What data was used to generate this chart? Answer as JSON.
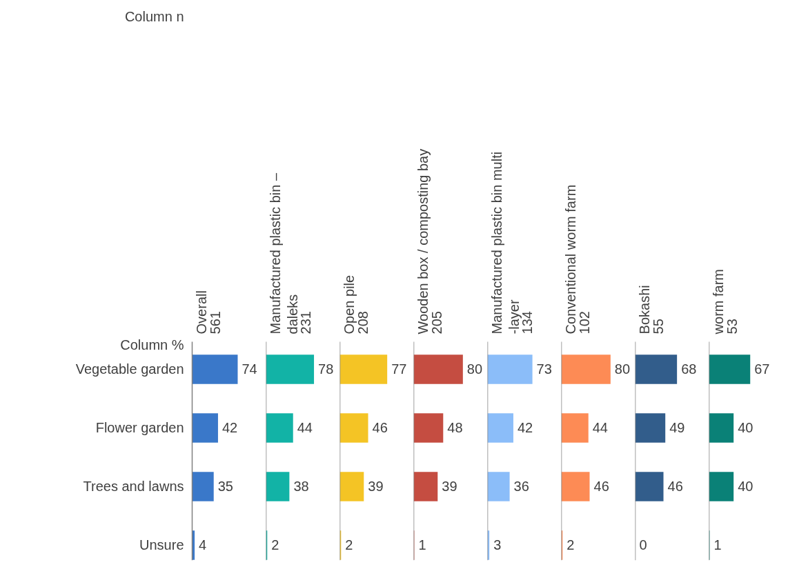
{
  "chart_data": [
    {
      "type": "bar",
      "orientation": "horizontal",
      "title": "Overall",
      "subtitle": "561",
      "categories": [
        "Vegetable garden",
        "Flower garden",
        "Trees and lawns",
        "Unsure"
      ],
      "values": [
        74,
        42,
        35,
        4
      ],
      "color": "#3a78c9",
      "data_labels": true,
      "tick_labels": "y",
      "annotations": [
        "Column n",
        "Column %"
      ]
    },
    {
      "type": "bar",
      "orientation": "horizontal",
      "title": "Manufactured plastic bin –\ndaleks",
      "subtitle": "231",
      "values": [
        78,
        44,
        38,
        2
      ],
      "color": "#12b3a6",
      "data_labels": true,
      "tick_labels": false
    },
    {
      "type": "bar",
      "orientation": "horizontal",
      "title": "Open pile",
      "subtitle": "208",
      "values": [
        77,
        46,
        39,
        2
      ],
      "color": "#f4c425",
      "data_labels": true,
      "tick_labels": false
    },
    {
      "type": "bar",
      "orientation": "horizontal",
      "title": "Wooden box / composting bay",
      "subtitle": "205",
      "values": [
        80,
        48,
        39,
        1
      ],
      "color": "#c54d41",
      "data_labels": true,
      "tick_labels": false
    },
    {
      "type": "bar",
      "orientation": "horizontal",
      "title": "Manufactured plastic bin multi\n-layer",
      "subtitle": "134",
      "values": [
        73,
        42,
        36,
        3
      ],
      "color": "#8bbdf9",
      "data_labels": true,
      "tick_labels": false
    },
    {
      "type": "bar",
      "orientation": "horizontal",
      "title": "Conventional worm farm",
      "subtitle": "102",
      "values": [
        80,
        44,
        46,
        2
      ],
      "color": "#fd8b55",
      "data_labels": true,
      "tick_labels": false
    },
    {
      "type": "bar",
      "orientation": "horizontal",
      "title": "Bokashi",
      "subtitle": "55",
      "values": [
        68,
        49,
        46,
        0
      ],
      "color": "#325d8b",
      "data_labels": true,
      "tick_labels": false
    },
    {
      "type": "bar",
      "orientation": "horizontal",
      "title": "worm farm",
      "subtitle": "53",
      "values": [
        67,
        40,
        40,
        1
      ],
      "color": "#0a8177",
      "data_labels": true,
      "tick_labels": false
    }
  ]
}
